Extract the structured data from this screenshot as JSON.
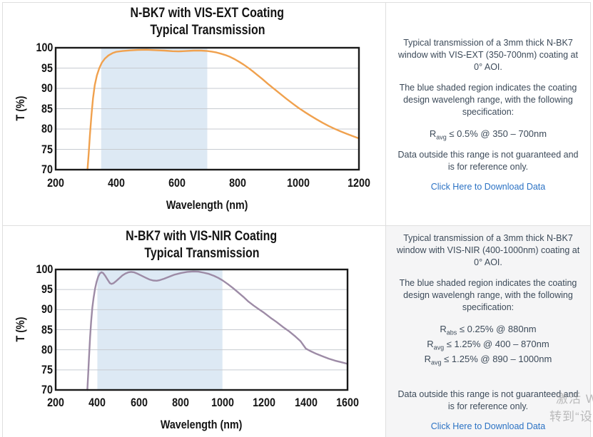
{
  "colors": {
    "vis_ext_line": "#F0A14E",
    "vis_nir_line": "#9D8BA6",
    "design_band_fill": "#DDE9F4",
    "gridline": "#C7CBD1",
    "plot_border": "#1A1A1A",
    "panel_text": "#3C4A59",
    "link_blue": "#2B72C4",
    "panel_gray_bg": "#F5F5F6"
  },
  "chart_data": [
    {
      "type": "line",
      "title": "N-BK7 with VIS-EXT Coating",
      "subtitle": "Typical Transmission",
      "xlabel": "Wavelength (nm)",
      "ylabel": "T (%)",
      "xlim": [
        200,
        1200
      ],
      "xtick_step": 200,
      "ylim": [
        70,
        100
      ],
      "ytick_step": 5,
      "grid": "horizontal-only",
      "design_band_nm": [
        350,
        700
      ],
      "line_color": "#F0A14E",
      "series": [
        {
          "name": "Typical Transmission",
          "points": [
            [
              305,
              70
            ],
            [
              309,
              74
            ],
            [
              313,
              78.5
            ],
            [
              318,
              83.5
            ],
            [
              323,
              87.5
            ],
            [
              329,
              90.8
            ],
            [
              336,
              93.2
            ],
            [
              344,
              95.0
            ],
            [
              352,
              96.3
            ],
            [
              362,
              97.3
            ],
            [
              374,
              98.1
            ],
            [
              388,
              98.7
            ],
            [
              400,
              99.0
            ],
            [
              420,
              99.2
            ],
            [
              445,
              99.35
            ],
            [
              470,
              99.45
            ],
            [
              500,
              99.5
            ],
            [
              530,
              99.4
            ],
            [
              560,
              99.3
            ],
            [
              585,
              99.15
            ],
            [
              605,
              99.1
            ],
            [
              630,
              99.2
            ],
            [
              655,
              99.3
            ],
            [
              680,
              99.3
            ],
            [
              700,
              99.2
            ],
            [
              715,
              99.05
            ],
            [
              730,
              98.85
            ],
            [
              745,
              98.55
            ],
            [
              760,
              98.2
            ],
            [
              775,
              97.75
            ],
            [
              790,
              97.2
            ],
            [
              805,
              96.55
            ],
            [
              820,
              95.85
            ],
            [
              835,
              95.05
            ],
            [
              850,
              94.2
            ],
            [
              865,
              93.3
            ],
            [
              880,
              92.4
            ],
            [
              900,
              91.1
            ],
            [
              920,
              89.9
            ],
            [
              940,
              88.7
            ],
            [
              960,
              87.5
            ],
            [
              980,
              86.35
            ],
            [
              1000,
              85.25
            ],
            [
              1020,
              84.25
            ],
            [
              1040,
              83.3
            ],
            [
              1060,
              82.4
            ],
            [
              1080,
              81.55
            ],
            [
              1100,
              80.75
            ],
            [
              1120,
              80.05
            ],
            [
              1140,
              79.4
            ],
            [
              1160,
              78.8
            ],
            [
              1180,
              78.25
            ],
            [
              1200,
              77.7
            ]
          ]
        }
      ]
    },
    {
      "type": "line",
      "title": "N-BK7 with VIS-NIR Coating",
      "subtitle": "Typical Transmission",
      "xlabel": "Wavelength (nm)",
      "ylabel": "T (%)",
      "xlim": [
        200,
        1600
      ],
      "xtick_step": 200,
      "ylim": [
        70,
        100
      ],
      "ytick_step": 5,
      "grid": "horizontal-only",
      "design_band_nm": [
        400,
        1000
      ],
      "line_color": "#9D8BA6",
      "series": [
        {
          "name": "Typical Transmission",
          "points": [
            [
              352,
              70
            ],
            [
              356,
              74
            ],
            [
              360,
              78
            ],
            [
              365,
              83
            ],
            [
              370,
              87
            ],
            [
              376,
              90.5
            ],
            [
              382,
              93
            ],
            [
              389,
              95.2
            ],
            [
              396,
              96.9
            ],
            [
              404,
              98.2
            ],
            [
              412,
              99.0
            ],
            [
              420,
              99.3
            ],
            [
              428,
              99.1
            ],
            [
              438,
              98.4
            ],
            [
              450,
              97.4
            ],
            [
              460,
              96.6
            ],
            [
              468,
              96.4
            ],
            [
              478,
              96.6
            ],
            [
              490,
              97.1
            ],
            [
              505,
              97.8
            ],
            [
              520,
              98.5
            ],
            [
              535,
              99.0
            ],
            [
              550,
              99.3
            ],
            [
              562,
              99.4
            ],
            [
              575,
              99.3
            ],
            [
              590,
              99.0
            ],
            [
              610,
              98.5
            ],
            [
              630,
              98.0
            ],
            [
              650,
              97.5
            ],
            [
              668,
              97.25
            ],
            [
              685,
              97.2
            ],
            [
              700,
              97.35
            ],
            [
              720,
              97.7
            ],
            [
              745,
              98.2
            ],
            [
              770,
              98.7
            ],
            [
              800,
              99.1
            ],
            [
              830,
              99.4
            ],
            [
              860,
              99.5
            ],
            [
              885,
              99.45
            ],
            [
              910,
              99.2
            ],
            [
              935,
              98.9
            ],
            [
              960,
              98.4
            ],
            [
              980,
              97.9
            ],
            [
              1000,
              97.3
            ],
            [
              1025,
              96.4
            ],
            [
              1050,
              95.4
            ],
            [
              1075,
              94.3
            ],
            [
              1100,
              93.2
            ],
            [
              1125,
              92.0
            ],
            [
              1150,
              91.0
            ],
            [
              1175,
              90.1
            ],
            [
              1200,
              89.2
            ],
            [
              1230,
              88.0
            ],
            [
              1260,
              86.9
            ],
            [
              1290,
              85.7
            ],
            [
              1320,
              84.6
            ],
            [
              1350,
              83.3
            ],
            [
              1375,
              82.1
            ],
            [
              1400,
              80.3
            ],
            [
              1425,
              79.6
            ],
            [
              1450,
              79.0
            ],
            [
              1480,
              78.4
            ],
            [
              1510,
              77.8
            ],
            [
              1540,
              77.3
            ],
            [
              1570,
              76.9
            ],
            [
              1600,
              76.5
            ]
          ]
        }
      ]
    }
  ],
  "panels": [
    {
      "intro": "Typical transmission of a 3mm thick N-BK7 window with VIS-EXT (350-700nm) coating at 0° AOI.",
      "shaded": "The blue shaded region indicates the coating design wavelengh range, with the following specification:",
      "specs": [
        {
          "base": "R",
          "sub": "avg",
          "rest": " ≤ 0.5% @ 350 – 700nm"
        }
      ],
      "note": "Data outside this range is not guaranteed and is for reference only.",
      "link": "Click Here to Download Data"
    },
    {
      "intro": "Typical transmission of a 3mm thick N-BK7 window with VIS-NIR (400-1000nm) coating at 0° AOI.",
      "shaded": "The blue shaded region indicates the coating design wavelengh range, with the following specification:",
      "specs": [
        {
          "base": "R",
          "sub": "abs",
          "rest": " ≤ 0.25% @ 880nm"
        },
        {
          "base": "R",
          "sub": "avg",
          "rest": " ≤ 1.25% @ 400 – 870nm"
        },
        {
          "base": "R",
          "sub": "avg",
          "rest": " ≤ 1.25% @ 890 – 1000nm"
        }
      ],
      "note": "Data outside this range is not guaranteed and is for reference only.",
      "link": "Click Here to Download Data"
    }
  ],
  "watermark": {
    "line1": "激活 W",
    "line2": "转到“设"
  }
}
